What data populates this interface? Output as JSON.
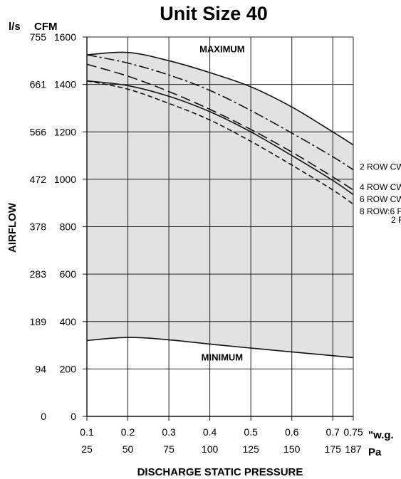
{
  "chart_data": {
    "type": "line",
    "title": "Unit Size 40",
    "xlabel": "DISCHARGE STATIC PRESSURE",
    "ylabel": "AIRFLOW",
    "x_unit_primary": "\"w.g.",
    "x_unit_secondary": "Pa",
    "y_unit_primary": "CFM",
    "y_unit_secondary": "l/s",
    "xlim": [
      0.1,
      0.75
    ],
    "ylim": [
      0,
      1600
    ],
    "grid": true,
    "x_ticks": [
      {
        "wg": 0.1,
        "wg_label": "0.1",
        "pa_label": "25"
      },
      {
        "wg": 0.2,
        "wg_label": "0.2",
        "pa_label": "50"
      },
      {
        "wg": 0.3,
        "wg_label": "0.3",
        "pa_label": "75"
      },
      {
        "wg": 0.4,
        "wg_label": "0.4",
        "pa_label": "100"
      },
      {
        "wg": 0.5,
        "wg_label": "0.5",
        "pa_label": "125"
      },
      {
        "wg": 0.6,
        "wg_label": "0.6",
        "pa_label": "150"
      },
      {
        "wg": 0.7,
        "wg_label": "0.7",
        "pa_label": "175"
      },
      {
        "wg": 0.75,
        "wg_label": "0.75",
        "pa_label": "187"
      }
    ],
    "y_ticks": [
      {
        "cfm": 0,
        "cfm_label": "0",
        "ls_label": "0"
      },
      {
        "cfm": 200,
        "cfm_label": "200",
        "ls_label": "94"
      },
      {
        "cfm": 400,
        "cfm_label": "400",
        "ls_label": "189"
      },
      {
        "cfm": 600,
        "cfm_label": "600",
        "ls_label": "283"
      },
      {
        "cfm": 800,
        "cfm_label": "800",
        "ls_label": "378"
      },
      {
        "cfm": 1000,
        "cfm_label": "1000",
        "ls_label": "472"
      },
      {
        "cfm": 1200,
        "cfm_label": "1200",
        "ls_label": "566"
      },
      {
        "cfm": 1400,
        "cfm_label": "1400",
        "ls_label": "661"
      },
      {
        "cfm": 1600,
        "cfm_label": "1600",
        "ls_label": "755"
      }
    ],
    "boundary_labels": {
      "maximum": "MAXIMUM",
      "minimum": "MINIMUM"
    },
    "series": [
      {
        "name": "MAXIMUM",
        "style": "solid",
        "x": [
          0.1,
          0.2,
          0.3,
          0.4,
          0.5,
          0.6,
          0.7,
          0.75
        ],
        "y": [
          1525,
          1535,
          1500,
          1450,
          1390,
          1305,
          1200,
          1145
        ]
      },
      {
        "name": "MINIMUM",
        "style": "solid",
        "x": [
          0.1,
          0.2,
          0.3,
          0.4,
          0.5,
          0.6,
          0.7,
          0.75
        ],
        "y": [
          320,
          333,
          323,
          305,
          288,
          272,
          256,
          248
        ]
      },
      {
        "name": "2 ROW CW",
        "style": "dashdot",
        "x": [
          0.1,
          0.2,
          0.3,
          0.4,
          0.5,
          0.6,
          0.7,
          0.75
        ],
        "y": [
          1525,
          1490,
          1440,
          1375,
          1290,
          1195,
          1095,
          1040
        ]
      },
      {
        "name": "4 ROW CW",
        "style": "longdash",
        "x": [
          0.1,
          0.2,
          0.3,
          0.4,
          0.5,
          0.6,
          0.7,
          0.75
        ],
        "y": [
          1485,
          1435,
          1370,
          1295,
          1210,
          1115,
          1010,
          955
        ]
      },
      {
        "name": "6 ROW CW",
        "style": "solid",
        "x": [
          0.1,
          0.2,
          0.3,
          0.4,
          0.5,
          0.6,
          0.7,
          0.75
        ],
        "y": [
          1415,
          1395,
          1350,
          1285,
          1200,
          1100,
          995,
          935
        ]
      },
      {
        "name": "8 ROW:6 F",
        "style": "shortdash",
        "x": [
          0.1,
          0.2,
          0.3,
          0.4,
          0.5,
          0.6,
          0.7,
          0.75
        ],
        "y": [
          1415,
          1380,
          1320,
          1250,
          1160,
          1060,
          955,
          895
        ]
      }
    ],
    "series_note": "2 F",
    "shade_color": "#e2e2e2",
    "line_color": "#111111"
  }
}
